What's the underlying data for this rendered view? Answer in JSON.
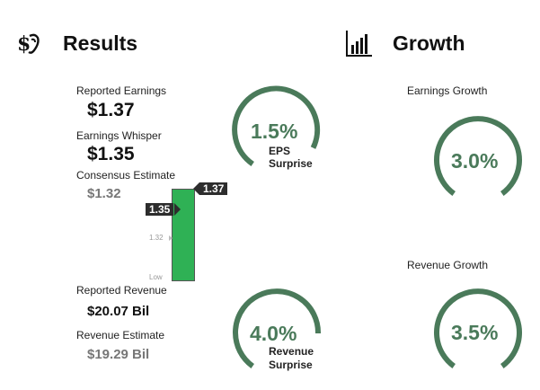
{
  "results": {
    "title": "Results",
    "icon": "money-hand-icon",
    "reported_earnings_label": "Reported Earnings",
    "reported_earnings_value": "$1.37",
    "earnings_whisper_label": "Earnings Whisper",
    "earnings_whisper_value": "$1.35",
    "consensus_estimate_label": "Consensus Estimate",
    "consensus_estimate_value": "$1.32",
    "reported_revenue_label": "Reported Revenue",
    "reported_revenue_value": "$20.07 Bil",
    "revenue_estimate_label": "Revenue Estimate",
    "revenue_estimate_value": "$19.29 Bil",
    "eps_gauge": {
      "percent": "1.5%",
      "line1": "EPS",
      "line2": "Surprise"
    },
    "revenue_gauge": {
      "percent": "4.0%",
      "line1": "Revenue",
      "line2": "Surprise"
    }
  },
  "chart": {
    "flag_reported": "1.37",
    "flag_whisper": "1.35",
    "tick_consensus": "1.32",
    "tick_low": "Low",
    "bar_color": "#2fb155"
  },
  "growth": {
    "title": "Growth",
    "icon": "bar-chart-icon",
    "earnings_growth_label": "Earnings Growth",
    "earnings_growth_value": "3.0%",
    "revenue_growth_label": "Revenue Growth",
    "revenue_growth_value": "3.5%"
  },
  "colors": {
    "gauge_arc": "#4a7a5a"
  }
}
